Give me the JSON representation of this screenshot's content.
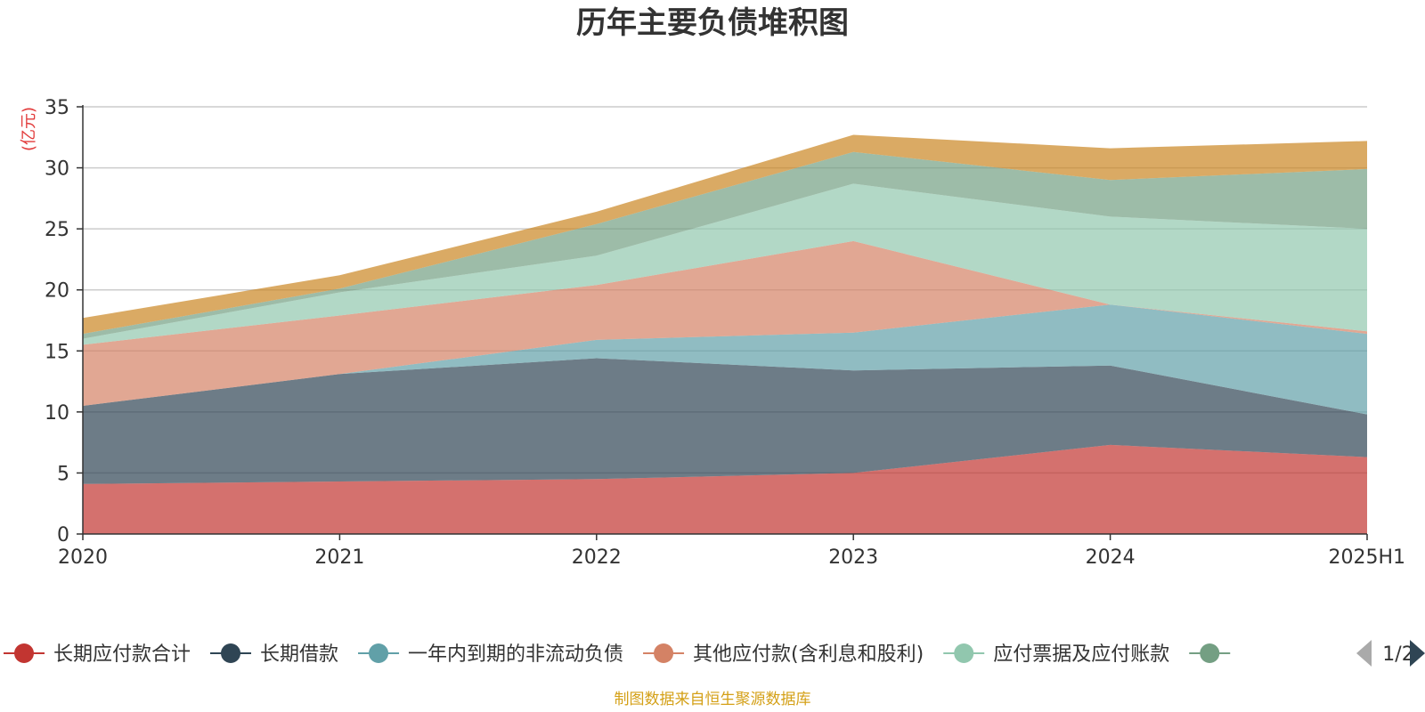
{
  "chart_data": {
    "type": "area",
    "stacked": true,
    "title": "历年主要负债堆积图",
    "unit_label": "(亿元)",
    "categories": [
      "2020",
      "2021",
      "2022",
      "2023",
      "2024",
      "2025H1"
    ],
    "ylim": [
      0,
      35
    ],
    "yticks": [
      0,
      5,
      10,
      15,
      20,
      25,
      30,
      35
    ],
    "grid": true,
    "legend_position": "bottom",
    "legend_page": "1/2",
    "source": "制图数据来自恒生聚源数据库",
    "series": [
      {
        "name": "长期应付款合计",
        "color": "#c23531",
        "values": [
          4.1,
          4.3,
          4.5,
          5.0,
          7.3,
          6.3
        ]
      },
      {
        "name": "长期借款",
        "color": "#2f4554",
        "values": [
          6.4,
          8.8,
          9.9,
          8.4,
          6.5,
          3.5
        ]
      },
      {
        "name": "一年内到期的非流动负债",
        "color": "#61a0a8",
        "values": [
          0.0,
          0.0,
          1.5,
          3.1,
          5.0,
          6.6
        ]
      },
      {
        "name": "其他应付款(含利息和股利)",
        "color": "#d48265",
        "values": [
          5.0,
          4.8,
          4.5,
          7.5,
          0.0,
          0.2
        ]
      },
      {
        "name": "应付票据及应付账款",
        "color": "#91c7ae",
        "values": [
          0.5,
          1.9,
          2.4,
          4.7,
          7.2,
          8.4
        ]
      },
      {
        "name": "",
        "color": "#749f83",
        "values": [
          0.4,
          0.3,
          2.6,
          2.6,
          3.0,
          4.9
        ]
      },
      {
        "name": "",
        "color": "#ca8622",
        "values": [
          1.3,
          1.1,
          1.0,
          1.4,
          2.6,
          2.3
        ]
      }
    ]
  }
}
